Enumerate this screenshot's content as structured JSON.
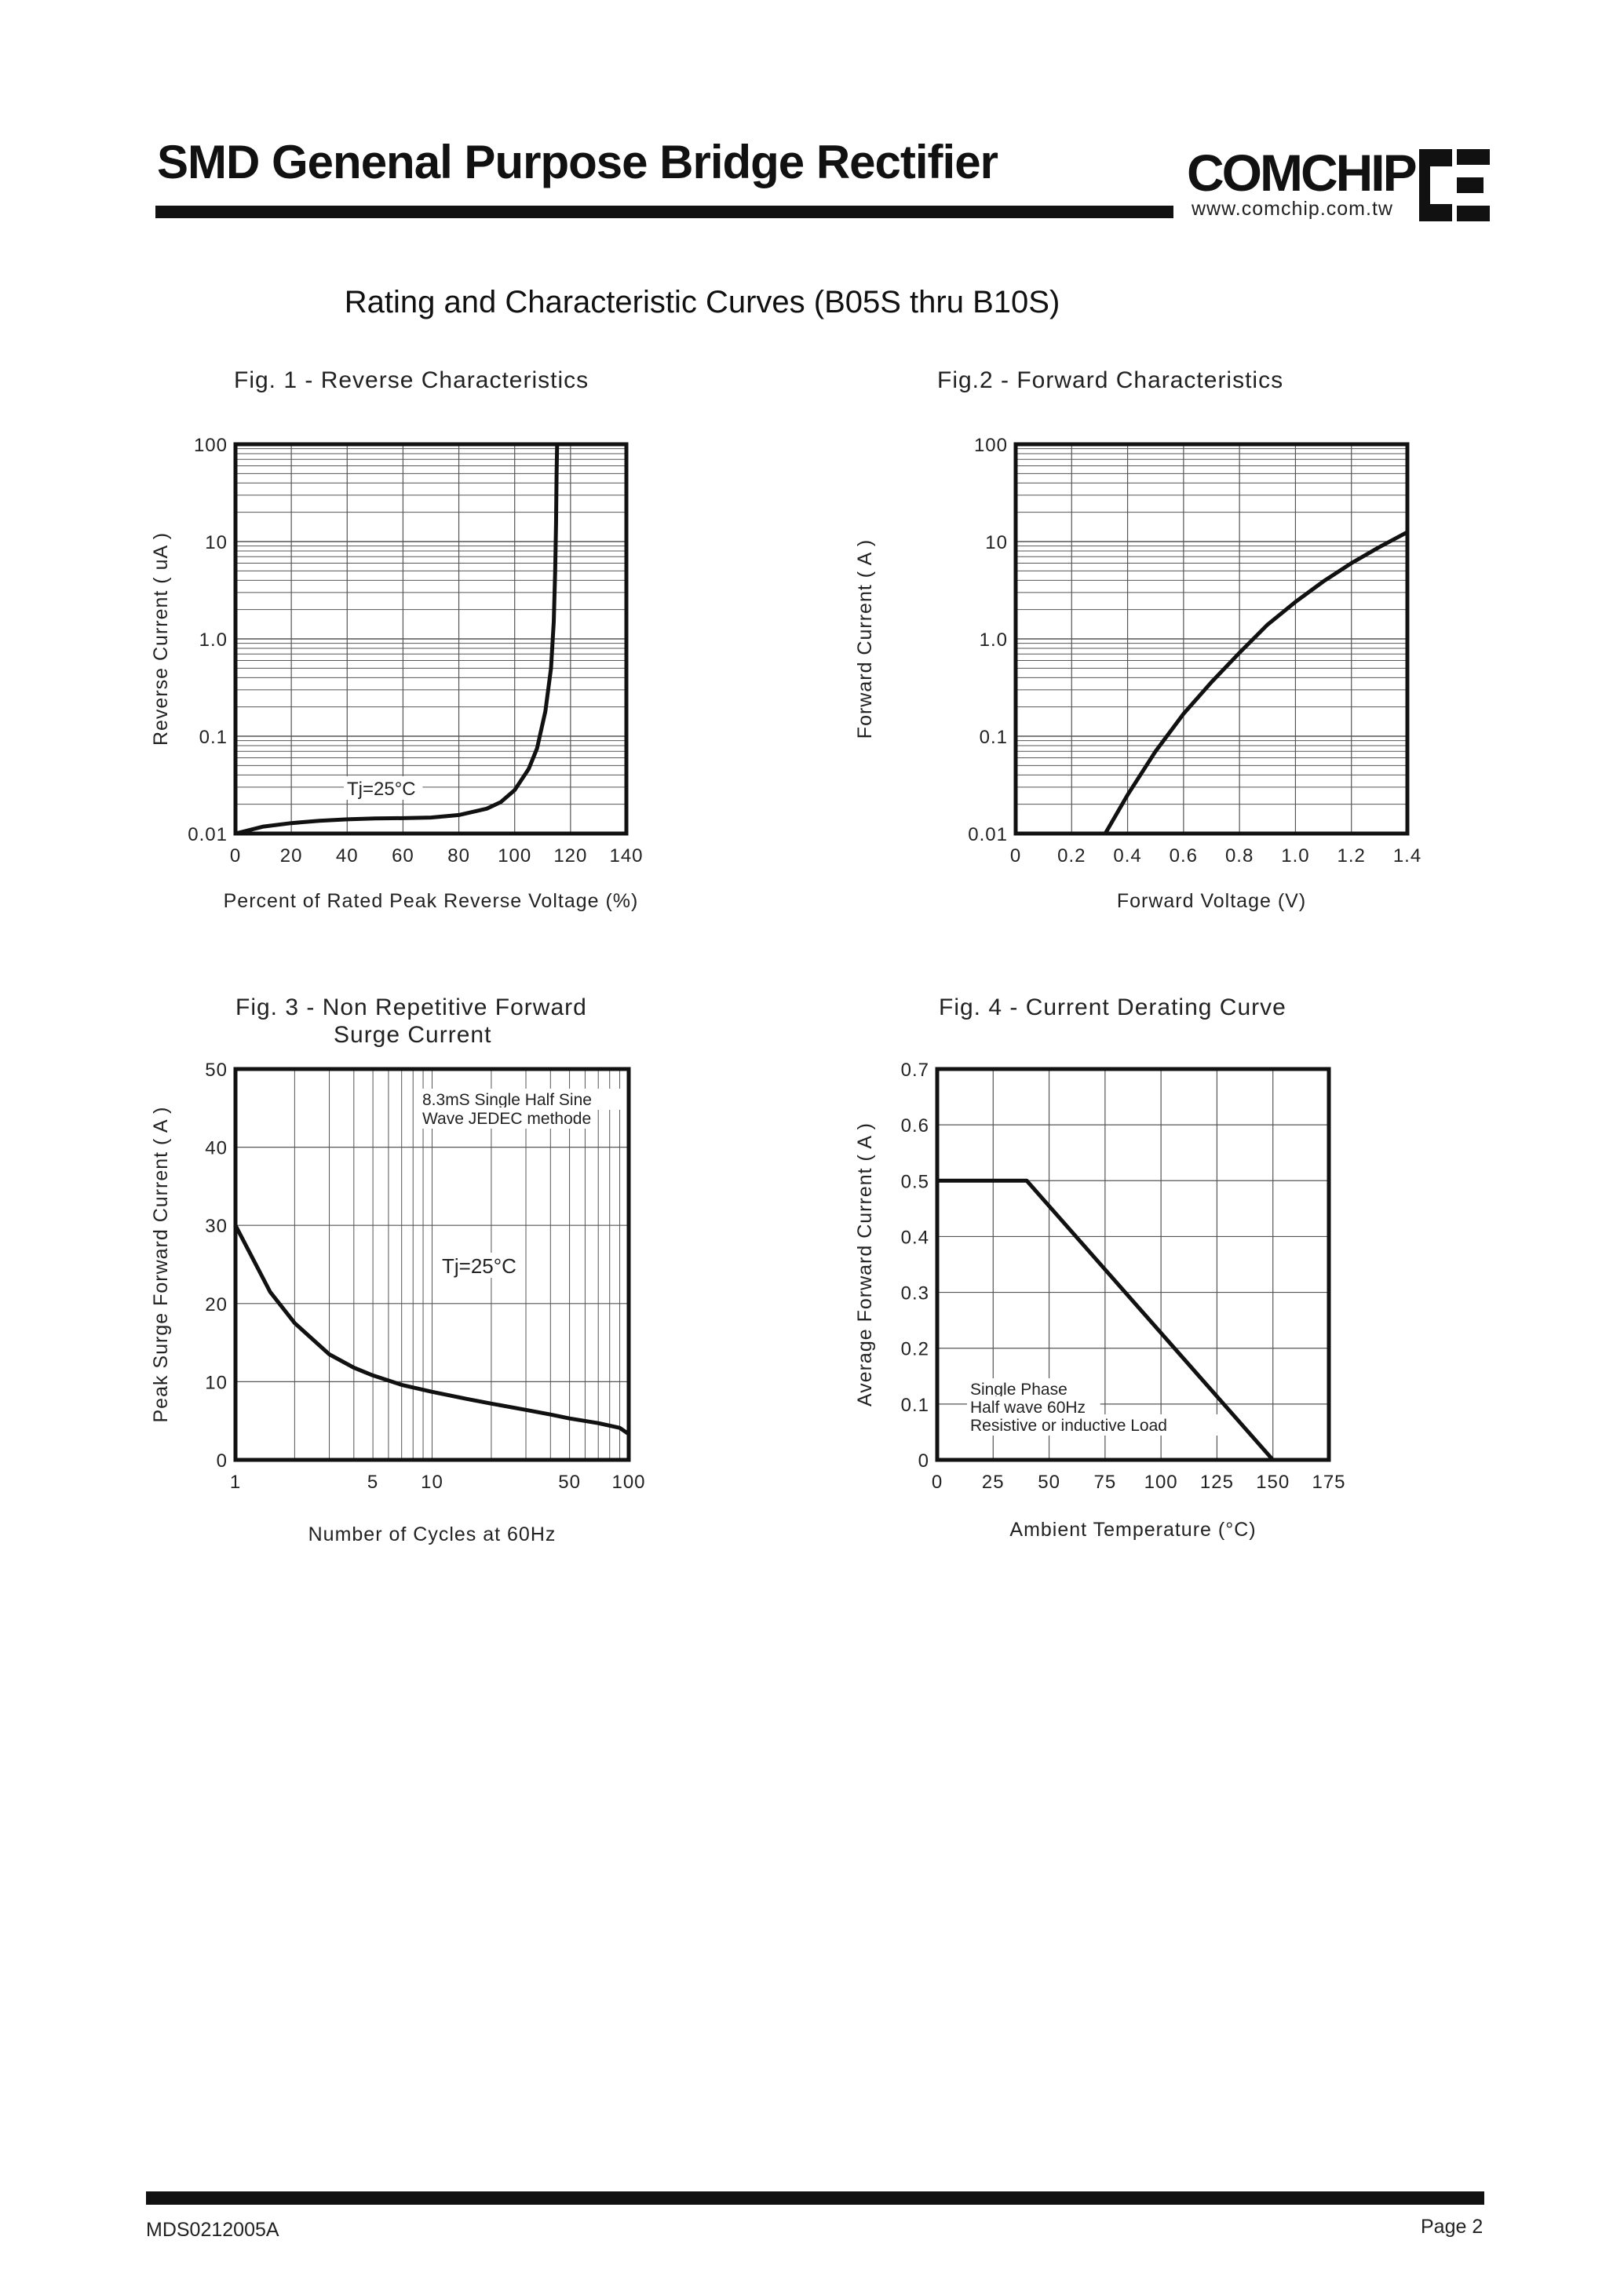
{
  "header": {
    "title": "SMD Genenal Purpose Bridge Rectifier",
    "brand": "COMCHIP",
    "url": "www.comchip.com.tw",
    "logo_icon": "ce-logo-icon"
  },
  "section_heading": "Rating and Characteristic Curves (B05S thru B10S)",
  "footer": {
    "doc_code": "MDS0212005A",
    "page": "Page 2"
  },
  "chart_data": [
    {
      "type": "line",
      "title": "Fig. 1 -  Reverse Characteristics",
      "xlabel": "Percent of Rated Peak Reverse Voltage (%)",
      "ylabel": "Reverse Current ( uA )",
      "xlim": [
        0,
        140
      ],
      "ylim": [
        0.01,
        100
      ],
      "yscale": "log",
      "grid": true,
      "xticks": [
        0,
        20,
        40,
        60,
        80,
        100,
        120,
        140
      ],
      "xtick_labels": [
        "0",
        "20",
        "40",
        "60",
        "80",
        "100",
        "120",
        "140"
      ],
      "yticks": [
        0.01,
        0.1,
        1,
        10,
        100
      ],
      "ytick_labels": [
        "0.01",
        "0.1",
        "1.0",
        "10",
        "100"
      ],
      "annotations": [
        "Tj=25°C"
      ],
      "x": [
        0,
        10,
        20,
        30,
        40,
        50,
        60,
        70,
        80,
        90,
        95,
        100,
        105,
        108,
        111,
        113,
        114,
        114.5,
        114.8,
        115,
        115.2
      ],
      "y": [
        0.01,
        0.0118,
        0.0128,
        0.0135,
        0.014,
        0.0143,
        0.0144,
        0.0146,
        0.0155,
        0.018,
        0.021,
        0.028,
        0.046,
        0.075,
        0.18,
        0.5,
        1.5,
        5,
        15,
        50,
        100
      ]
    },
    {
      "type": "line",
      "title": "Fig.2 -  Forward Characteristics",
      "xlabel": "Forward Voltage (V)",
      "ylabel": "Forward Current ( A )",
      "xlim": [
        0,
        1.4
      ],
      "ylim": [
        0.01,
        100
      ],
      "yscale": "log",
      "grid": true,
      "xticks": [
        0,
        0.2,
        0.4,
        0.6,
        0.8,
        1.0,
        1.2,
        1.4
      ],
      "xtick_labels": [
        "0",
        "0.2",
        "0.4",
        "0.6",
        "0.8",
        "1.0",
        "1.2",
        "1.4"
      ],
      "yticks": [
        0.01,
        0.1,
        1,
        10,
        100
      ],
      "ytick_labels": [
        "0.01",
        "0.1",
        "1.0",
        "10",
        "100"
      ],
      "x": [
        0.32,
        0.4,
        0.5,
        0.6,
        0.7,
        0.8,
        0.9,
        1.0,
        1.1,
        1.2,
        1.3,
        1.4
      ],
      "y": [
        0.01,
        0.025,
        0.07,
        0.17,
        0.36,
        0.72,
        1.4,
        2.4,
        3.9,
        6.0,
        8.8,
        12.5
      ]
    },
    {
      "type": "line",
      "title": "Fig. 3 -  Non Repetitive Forward",
      "subtitle": "Surge Current",
      "xlabel": "Number of Cycles at 60Hz",
      "ylabel": "Peak Surge Forward Current ( A )",
      "xlim": [
        1,
        100
      ],
      "ylim": [
        0,
        50
      ],
      "xscale": "log",
      "grid": true,
      "xticks": [
        1,
        5,
        10,
        50,
        100
      ],
      "xtick_labels": [
        "1",
        "5",
        "10",
        "50",
        "100"
      ],
      "yticks": [
        0,
        10,
        20,
        30,
        40,
        50
      ],
      "ytick_labels": [
        "0",
        "10",
        "20",
        "30",
        "40",
        "50"
      ],
      "annotations": [
        "8.3mS Single Half Sine",
        "Wave JEDEC methode",
        "Tj=25°C"
      ],
      "x": [
        1,
        1.5,
        2,
        3,
        4,
        5,
        7,
        10,
        15,
        20,
        30,
        40,
        50,
        70,
        90,
        100
      ],
      "y": [
        30,
        21.5,
        17.5,
        13.5,
        11.8,
        10.8,
        9.6,
        8.7,
        7.8,
        7.2,
        6.4,
        5.8,
        5.3,
        4.7,
        4.1,
        3.3
      ]
    },
    {
      "type": "line",
      "title": "Fig. 4 - Current Derating Curve",
      "xlabel": "Ambient Temperature (°C)",
      "ylabel": "Average Forward Current ( A )",
      "xlim": [
        0,
        175
      ],
      "ylim": [
        0,
        0.7
      ],
      "grid": true,
      "xticks": [
        0,
        25,
        50,
        75,
        100,
        125,
        150,
        175
      ],
      "xtick_labels": [
        "0",
        "25",
        "50",
        "75",
        "100",
        "125",
        "150",
        "175"
      ],
      "yticks": [
        0,
        0.1,
        0.2,
        0.3,
        0.4,
        0.5,
        0.6,
        0.7
      ],
      "ytick_labels": [
        "0",
        "0.1",
        "0.2",
        "0.3",
        "0.4",
        "0.5",
        "0.6",
        "0.7"
      ],
      "annotations": [
        "Single Phase",
        "Half wave 60Hz",
        "Resistive or inductive Load"
      ],
      "x": [
        0,
        40,
        150
      ],
      "y": [
        0.5,
        0.5,
        0
      ]
    }
  ]
}
